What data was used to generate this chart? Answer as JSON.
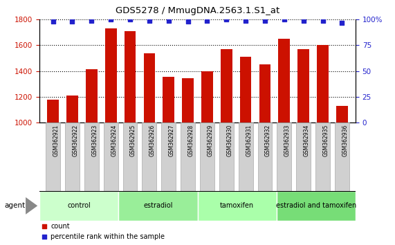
{
  "title": "GDS5278 / MmugDNA.2563.1.S1_at",
  "samples": [
    "GSM362921",
    "GSM362922",
    "GSM362923",
    "GSM362924",
    "GSM362925",
    "GSM362926",
    "GSM362927",
    "GSM362928",
    "GSM362929",
    "GSM362930",
    "GSM362931",
    "GSM362932",
    "GSM362933",
    "GSM362934",
    "GSM362935",
    "GSM362936"
  ],
  "counts": [
    1180,
    1210,
    1415,
    1730,
    1710,
    1540,
    1355,
    1345,
    1400,
    1570,
    1510,
    1450,
    1650,
    1570,
    1600,
    1130
  ],
  "percentile_ranks": [
    98,
    98,
    99,
    100,
    100,
    99,
    99,
    98,
    99,
    100,
    99,
    99,
    100,
    99,
    99,
    97
  ],
  "groups": [
    {
      "label": "control",
      "start": 0,
      "end": 4,
      "color": "#ccffcc"
    },
    {
      "label": "estradiol",
      "start": 4,
      "end": 8,
      "color": "#99ee99"
    },
    {
      "label": "tamoxifen",
      "start": 8,
      "end": 12,
      "color": "#aaffaa"
    },
    {
      "label": "estradiol and tamoxifen",
      "start": 12,
      "end": 16,
      "color": "#77dd77"
    }
  ],
  "bar_color": "#cc1100",
  "dot_color": "#2222cc",
  "ylim_left": [
    1000,
    1800
  ],
  "ylim_right": [
    0,
    100
  ],
  "yticks_left": [
    1000,
    1200,
    1400,
    1600,
    1800
  ],
  "yticks_right": [
    0,
    25,
    50,
    75,
    100
  ],
  "grid_color": "black",
  "tick_color_left": "#cc1100",
  "tick_color_right": "#2222cc",
  "agent_label": "agent",
  "legend_count_label": "count",
  "legend_pct_label": "percentile rank within the sample"
}
